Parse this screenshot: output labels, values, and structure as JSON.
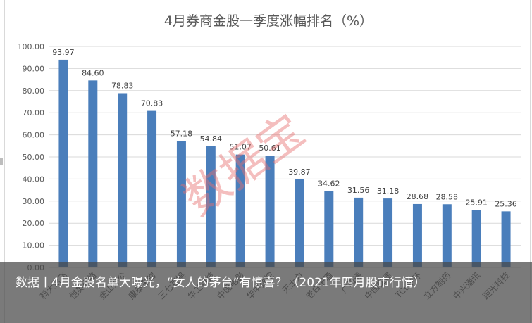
{
  "chart_data": {
    "type": "bar",
    "title": "4月券商金股一季度涨幅排名（%）",
    "categories": [
      "科大讯飞",
      "恺英网络",
      "金山办公",
      "康泰生物",
      "三七互娱",
      "华工科技",
      "中国电影",
      "华中数控",
      "天士力",
      "老白干酒",
      "广和通",
      "中国交建",
      "TCL中环",
      "立方制药",
      "中兴通讯",
      "距光科技"
    ],
    "values": [
      93.97,
      84.6,
      78.83,
      70.83,
      57.18,
      54.84,
      51.07,
      50.61,
      39.87,
      34.62,
      31.56,
      31.18,
      28.68,
      28.58,
      25.91,
      25.36
    ],
    "value_labels": [
      "93.97",
      "84.60",
      "78.83",
      "70.83",
      "57.18",
      "54.84",
      "51.07",
      "50.61",
      "39.87",
      "34.62",
      "31.56",
      "31.18",
      "28.68",
      "28.58",
      "25.91",
      "25.36"
    ],
    "ylim": [
      0,
      100
    ],
    "yticks": [
      "0.00",
      "10.00",
      "20.00",
      "30.00",
      "40.00",
      "50.00",
      "60.00",
      "70.00",
      "80.00",
      "90.00",
      "100.00"
    ],
    "grid": true,
    "bar_color": "#4a7ebb",
    "grid_color": "#d9d9d9"
  },
  "watermark": "数据宝",
  "caption": "数据丨4月金股名单大曝光，“女人的茅台”有惊喜？（2021年四月股市行情）"
}
